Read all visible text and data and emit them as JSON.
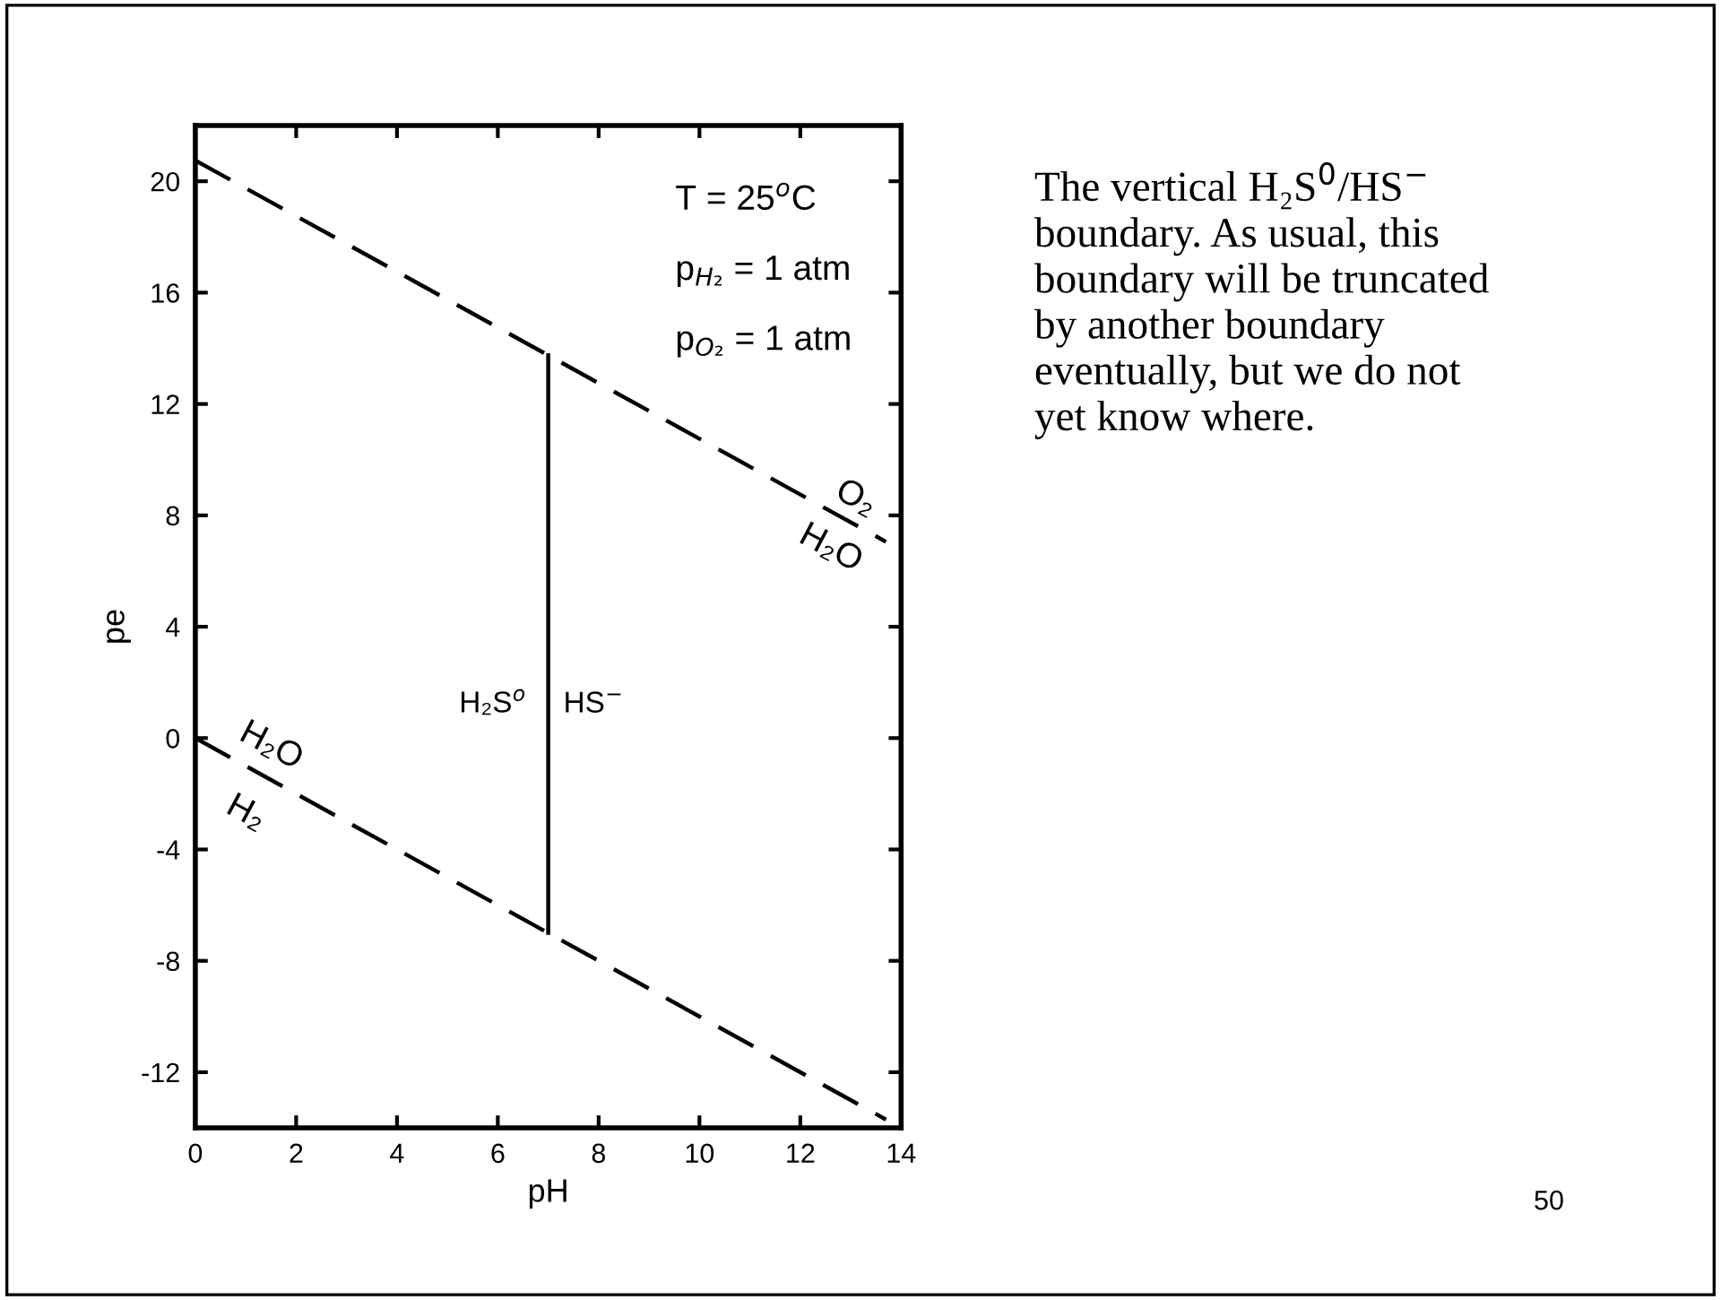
{
  "chart_data": {
    "type": "line",
    "xlabel": "pH",
    "ylabel": "pe",
    "xlim": [
      0,
      14
    ],
    "ylim": [
      -14,
      22
    ],
    "xticks": [
      0,
      2,
      4,
      6,
      8,
      10,
      12,
      14
    ],
    "yticks": [
      -12,
      -8,
      -4,
      0,
      4,
      8,
      12,
      16,
      20
    ],
    "grid": false,
    "marker": "none",
    "series": [
      {
        "color": "#000000",
        "line_style": "dashed",
        "x": [
          0,
          13.7
        ],
        "values": [
          20.75,
          7.05
        ]
      },
      {
        "color": "#000000",
        "line_style": "dashed",
        "x": [
          0,
          13.7
        ],
        "values": [
          0,
          -13.7
        ]
      },
      {
        "color": "#000000",
        "line_style": "solid",
        "x": [
          7,
          7
        ],
        "values": [
          -7,
          13.75
        ]
      }
    ],
    "annotations": [
      "T = 25$^{o}$C",
      "p$_{H₂}$ = 1 atm",
      "p$_{O₂}$ = 1 atm",
      "O₂",
      "H₂O",
      "H₂O",
      "H₂",
      "H₂S$^{o}$",
      "HS$^{−}$",
      "The vertical H₂S$^{0}$/HS$^{−}$\nboundary. As usual, this\nboundary will be truncated\nby another boundary\neventually, but we do not\nyet know where.",
      "50"
    ]
  }
}
